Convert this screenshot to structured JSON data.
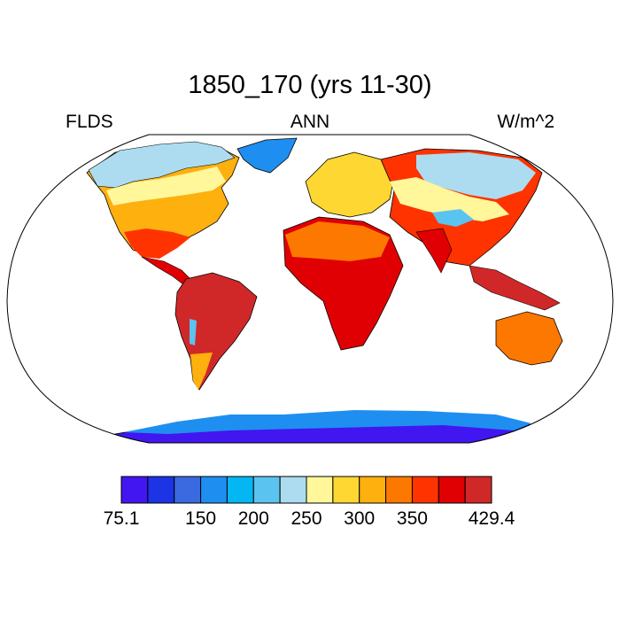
{
  "title": "1850_170 (yrs 11-30)",
  "left_label": "FLDS",
  "center_label": "ANN",
  "right_label": "W/m^2",
  "colorbar": {
    "colors": [
      "#4216f0",
      "#1c33e6",
      "#3a69e0",
      "#1e8ff0",
      "#04b6f2",
      "#5bc3f0",
      "#addcf0",
      "#fff79a",
      "#ffd732",
      "#fdb00e",
      "#fd7800",
      "#fe3300",
      "#e00003",
      "#d02828"
    ],
    "tick_labels": [
      "75.1",
      "150",
      "200",
      "250",
      "300",
      "350",
      "429.4"
    ],
    "tick_positions": [
      0,
      3,
      5,
      7,
      9,
      11,
      14
    ]
  },
  "map_colors": {
    "outline": "#000000",
    "ocean": "#ffffff"
  }
}
